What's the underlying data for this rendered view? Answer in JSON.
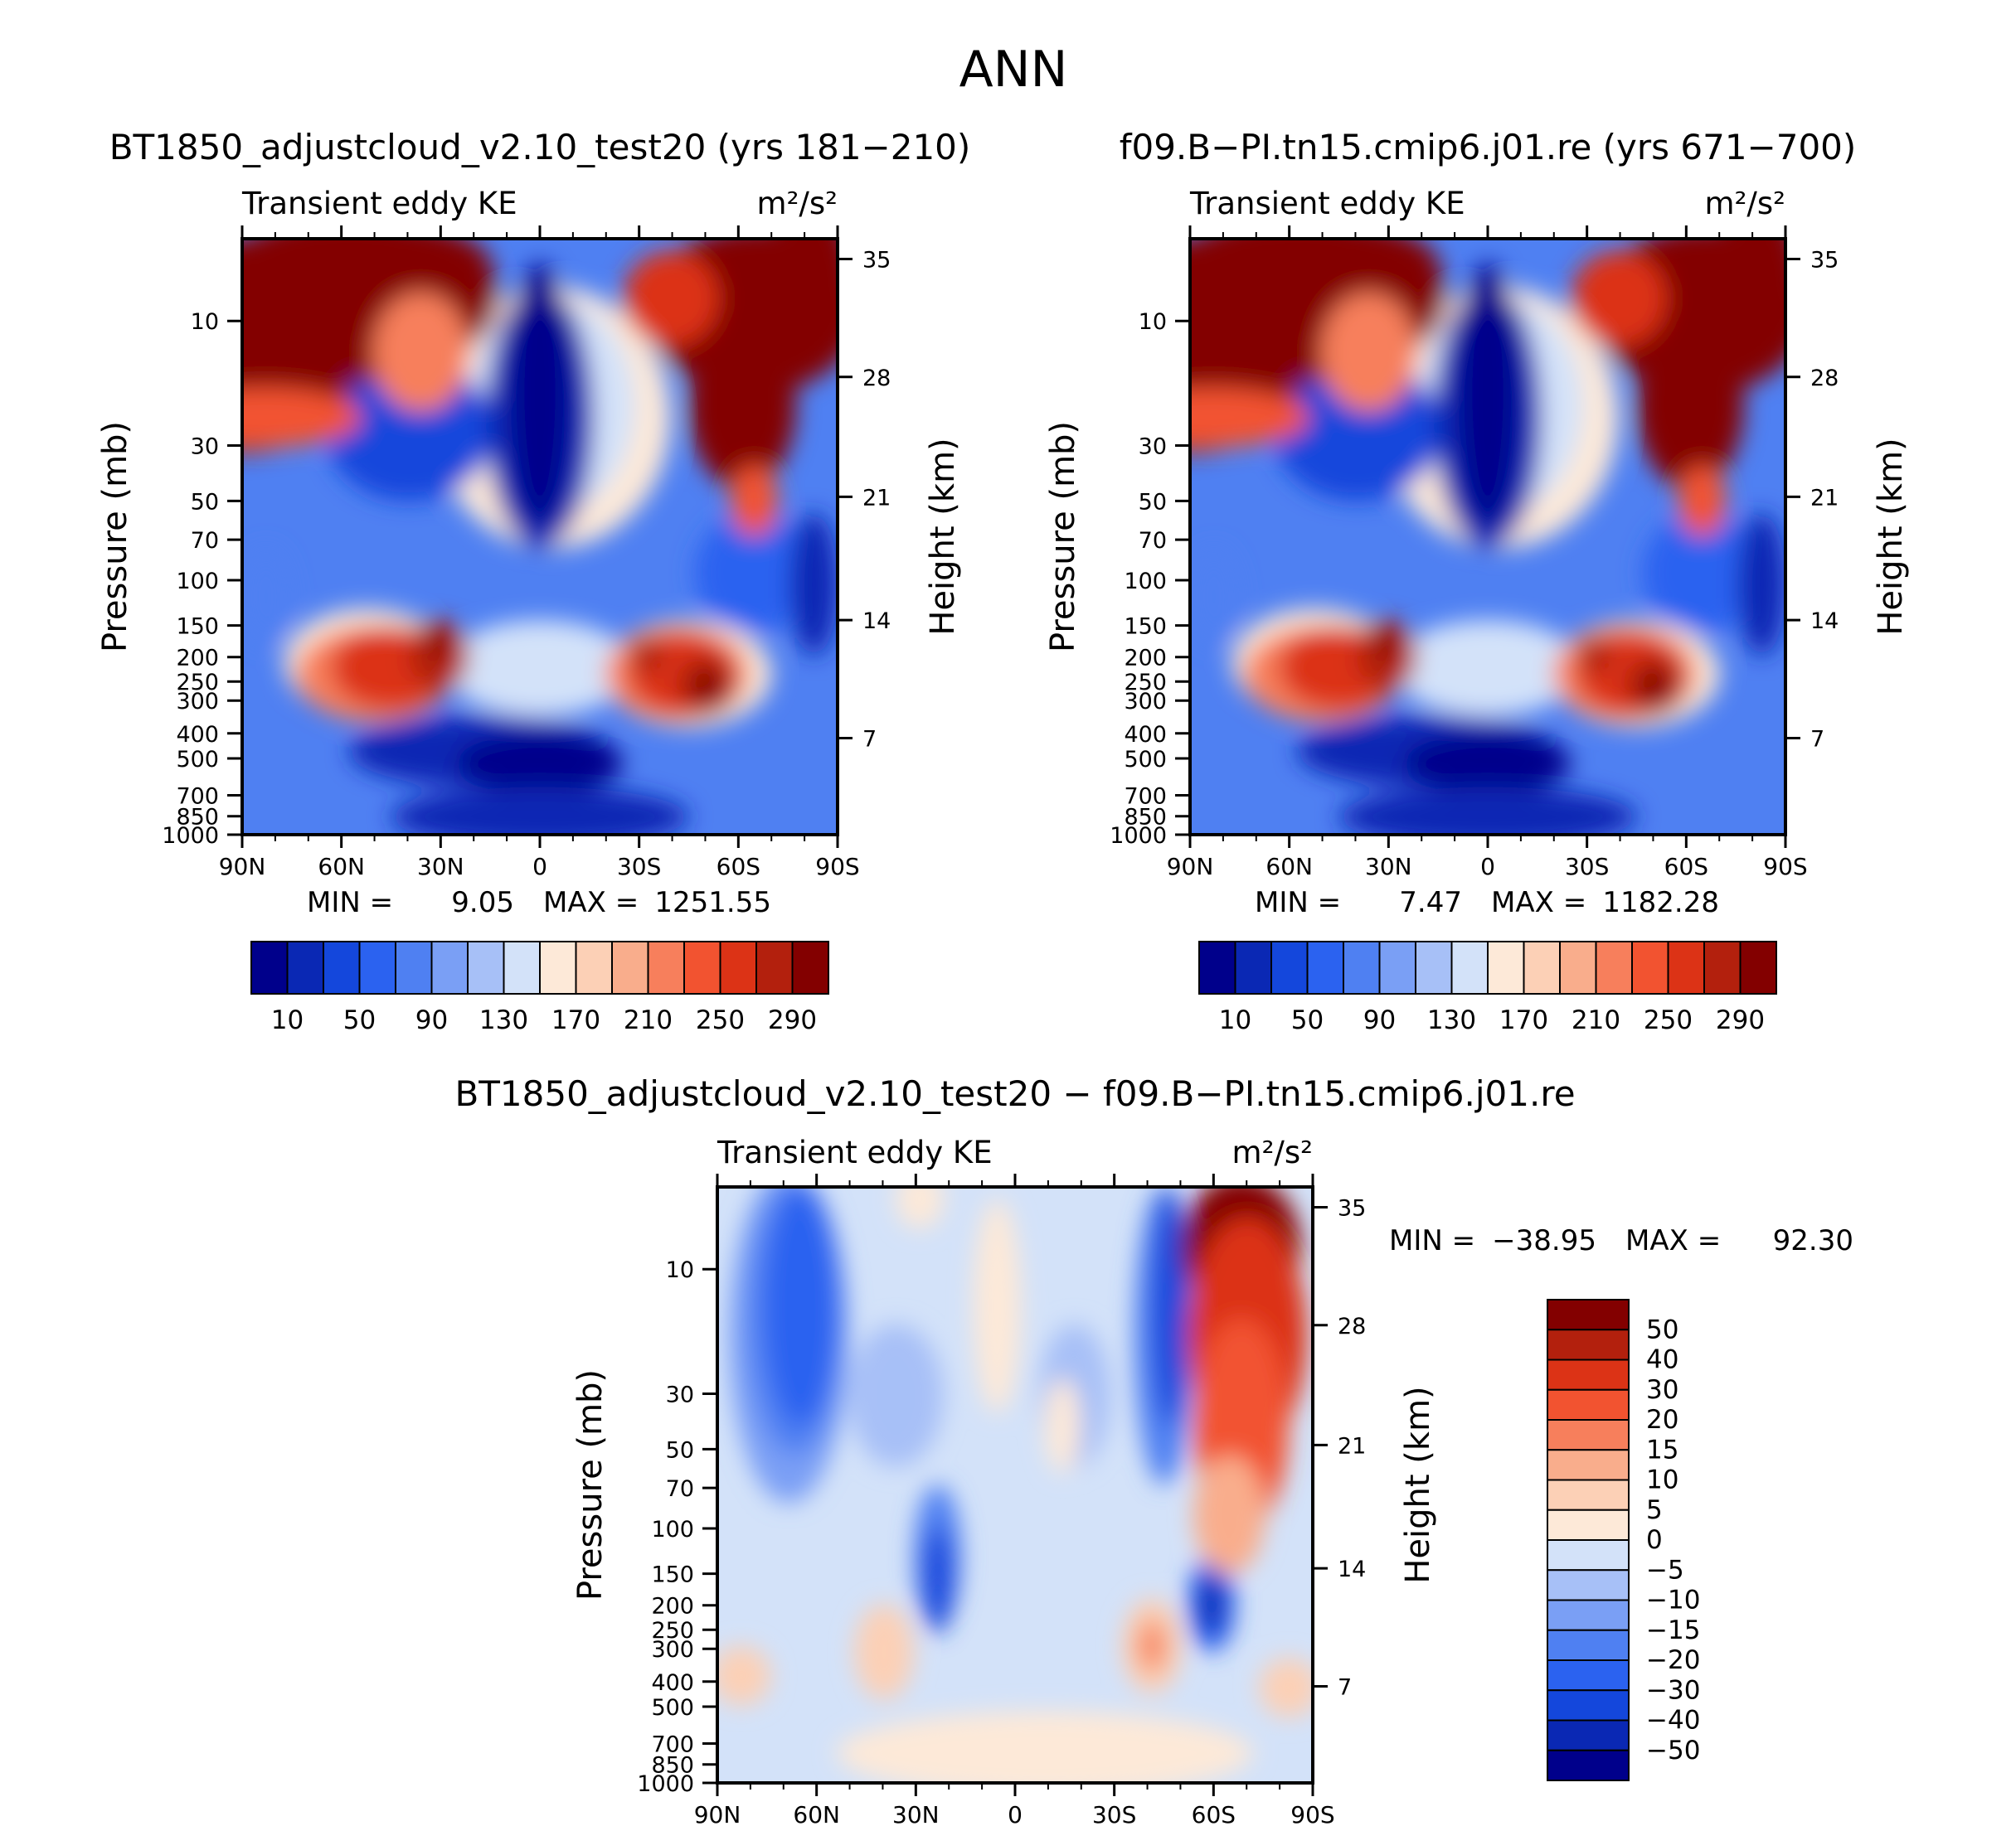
{
  "page_title": "ANN",
  "chart_data": [
    {
      "type": "heatmap",
      "id": "p1",
      "title": "BT1850_adjustcloud_v2.10_test20 (yrs 181−210)",
      "subtitle_left": "Transient eddy KE",
      "units": "m²/s²",
      "ylabel": "Pressure (mb)",
      "ylabel_right": "Height (km)",
      "x_ticks": [
        "90N",
        "60N",
        "30N",
        "0",
        "30S",
        "60S",
        "90S"
      ],
      "y_ticks": [
        "10",
        "30",
        "50",
        "70",
        "100",
        "150",
        "200",
        "250",
        "300",
        "400",
        "500",
        "700",
        "850",
        "1000"
      ],
      "y_ticks_right": [
        "35",
        "28",
        "21",
        "14",
        "7"
      ],
      "min_label": "MIN =",
      "min_value": "9.05",
      "max_label": "MAX =",
      "max_value": "1251.55",
      "levels": [
        10,
        50,
        90,
        130,
        170,
        210,
        250,
        290
      ],
      "colorbar_labels": [
        "10",
        "50",
        "90",
        "130",
        "170",
        "210",
        "250",
        "290"
      ],
      "colors": [
        "#00008b",
        "#0a28b4",
        "#1447dc",
        "#2b62f0",
        "#4f80f2",
        "#7a9ff5",
        "#a7c0f7",
        "#d3e2f9",
        "#fde9d8",
        "#fcd0b6",
        "#f9ad8c",
        "#f77f5c",
        "#f25330",
        "#dc3316",
        "#b3200d",
        "#830000"
      ]
    },
    {
      "type": "heatmap",
      "id": "p2",
      "title": "f09.B−PI.tn15.cmip6.j01.re (yrs 671−700)",
      "subtitle_left": "Transient eddy KE",
      "units": "m²/s²",
      "ylabel": "Pressure (mb)",
      "ylabel_right": "Height (km)",
      "x_ticks": [
        "90N",
        "60N",
        "30N",
        "0",
        "30S",
        "60S",
        "90S"
      ],
      "y_ticks": [
        "10",
        "30",
        "50",
        "70",
        "100",
        "150",
        "200",
        "250",
        "300",
        "400",
        "500",
        "700",
        "850",
        "1000"
      ],
      "y_ticks_right": [
        "35",
        "28",
        "21",
        "14",
        "7"
      ],
      "min_label": "MIN =",
      "min_value": "7.47",
      "max_label": "MAX =",
      "max_value": "1182.28",
      "levels": [
        10,
        50,
        90,
        130,
        170,
        210,
        250,
        290
      ],
      "colorbar_labels": [
        "10",
        "50",
        "90",
        "130",
        "170",
        "210",
        "250",
        "290"
      ],
      "colors": [
        "#00008b",
        "#0a28b4",
        "#1447dc",
        "#2b62f0",
        "#4f80f2",
        "#7a9ff5",
        "#a7c0f7",
        "#d3e2f9",
        "#fde9d8",
        "#fcd0b6",
        "#f9ad8c",
        "#f77f5c",
        "#f25330",
        "#dc3316",
        "#b3200d",
        "#830000"
      ]
    },
    {
      "type": "heatmap",
      "id": "p3",
      "title": "BT1850_adjustcloud_v2.10_test20 − f09.B−PI.tn15.cmip6.j01.re",
      "subtitle_left": "Transient eddy KE",
      "units": "m²/s²",
      "ylabel": "Pressure (mb)",
      "ylabel_right": "Height (km)",
      "x_ticks": [
        "90N",
        "60N",
        "30N",
        "0",
        "30S",
        "60S",
        "90S"
      ],
      "y_ticks": [
        "10",
        "30",
        "50",
        "70",
        "100",
        "150",
        "200",
        "250",
        "300",
        "400",
        "500",
        "700",
        "850",
        "1000"
      ],
      "y_ticks_right": [
        "35",
        "28",
        "21",
        "14",
        "7"
      ],
      "min_label": "MIN =",
      "min_value": "−38.95",
      "max_label": "MAX =",
      "max_value": "92.30",
      "levels": [
        -50,
        -40,
        -30,
        -20,
        -15,
        -10,
        -5,
        0,
        5,
        10,
        15,
        20,
        30,
        40,
        50
      ],
      "colorbar_labels": [
        "50",
        "40",
        "30",
        "20",
        "15",
        "10",
        "5",
        "0",
        "−5",
        "−10",
        "−15",
        "−20",
        "−30",
        "−40",
        "−50"
      ],
      "colors": [
        "#00008b",
        "#0a28b4",
        "#1447dc",
        "#2b62f0",
        "#4f80f2",
        "#7a9ff5",
        "#a7c0f7",
        "#d3e2f9",
        "#fde9d8",
        "#fcd0b6",
        "#f9ad8c",
        "#f77f5c",
        "#f25330",
        "#dc3316",
        "#b3200d",
        "#830000"
      ]
    }
  ]
}
